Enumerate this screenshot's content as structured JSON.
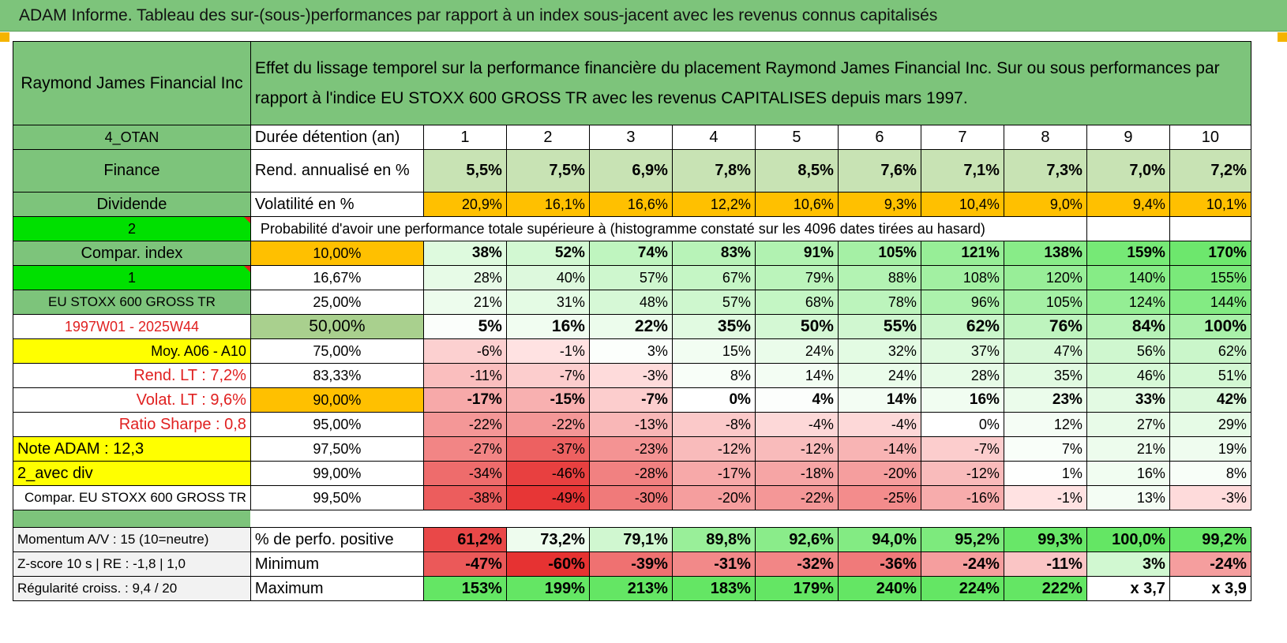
{
  "title": "ADAM Informe. Tableau des sur-(sous-)performances par rapport à un index sous-jacent avec les revenus connus capitalisés",
  "header": {
    "company": "Raymond James Financial Inc",
    "description": "Effet du lissage temporel sur la performance financière du placement Raymond James Financial Inc. Sur ou sous performances par rapport à l'indice EU STOXX 600 GROSS TR avec les revenus CAPITALISES depuis mars 1997."
  },
  "colors": {
    "title_green": "#7dc47b",
    "orange": "#ffc000",
    "yellow": "#ffff00",
    "bright_green": "#00e000",
    "red_text": "#e02020"
  },
  "years": [
    "1",
    "2",
    "3",
    "4",
    "5",
    "6",
    "7",
    "8",
    "9",
    "10"
  ],
  "top_rows": [
    {
      "side": "4_OTAN",
      "label": "Durée détention (an)"
    },
    {
      "side": "Finance",
      "label": "Rend. annualisé en %",
      "values": [
        "5,5%",
        "7,5%",
        "6,9%",
        "7,8%",
        "8,5%",
        "7,6%",
        "7,1%",
        "7,3%",
        "7,0%",
        "7,2%"
      ]
    },
    {
      "side": "Dividende",
      "label": "Volatilité en %",
      "values": [
        "20,9%",
        "16,1%",
        "16,6%",
        "12,2%",
        "10,6%",
        "9,3%",
        "10,4%",
        "9,0%",
        "9,4%",
        "10,1%"
      ]
    }
  ],
  "prob_row": {
    "side": "2",
    "text": "Probabilité d'avoir une performance totale supérieure à (histogramme constaté sur les 4096 dates tirées au hasard)"
  },
  "prob_rows": [
    {
      "side": "Compar. index",
      "pct": "10,00%",
      "values": [
        "38%",
        "52%",
        "74%",
        "83%",
        "91%",
        "105%",
        "121%",
        "138%",
        "159%",
        "170%"
      ]
    },
    {
      "side": "1",
      "pct": "16,67%",
      "values": [
        "28%",
        "40%",
        "57%",
        "67%",
        "79%",
        "88%",
        "108%",
        "120%",
        "140%",
        "155%"
      ]
    },
    {
      "side": "EU STOXX 600 GROSS TR",
      "pct": "25,00%",
      "values": [
        "21%",
        "31%",
        "48%",
        "57%",
        "68%",
        "78%",
        "96%",
        "105%",
        "124%",
        "144%"
      ]
    },
    {
      "side": "1997W01 - 2025W44",
      "pct": "50,00%",
      "values": [
        "5%",
        "16%",
        "22%",
        "35%",
        "50%",
        "55%",
        "62%",
        "76%",
        "84%",
        "100%"
      ]
    },
    {
      "side": "Moy. A06 - A10",
      "pct": "75,00%",
      "values": [
        "-6%",
        "-1%",
        "3%",
        "15%",
        "24%",
        "32%",
        "37%",
        "47%",
        "56%",
        "62%"
      ]
    },
    {
      "side": "Rend. LT :   7,2%",
      "pct": "83,33%",
      "values": [
        "-11%",
        "-7%",
        "-3%",
        "8%",
        "14%",
        "24%",
        "28%",
        "35%",
        "46%",
        "51%"
      ]
    },
    {
      "side": "Volat. LT :   9,6%",
      "pct": "90,00%",
      "values": [
        "-17%",
        "-15%",
        "-7%",
        "0%",
        "4%",
        "14%",
        "16%",
        "23%",
        "33%",
        "42%"
      ]
    },
    {
      "side": "Ratio Sharpe :    0,8",
      "pct": "95,00%",
      "values": [
        "-22%",
        "-22%",
        "-13%",
        "-8%",
        "-4%",
        "-4%",
        "0%",
        "12%",
        "27%",
        "29%"
      ]
    },
    {
      "side": "Note ADAM : 12,3",
      "pct": "97,50%",
      "values": [
        "-27%",
        "-37%",
        "-23%",
        "-12%",
        "-12%",
        "-14%",
        "-7%",
        "7%",
        "21%",
        "19%"
      ]
    },
    {
      "side": "2_avec div",
      "pct": "99,00%",
      "values": [
        "-34%",
        "-46%",
        "-28%",
        "-17%",
        "-18%",
        "-20%",
        "-12%",
        "1%",
        "16%",
        "8%"
      ]
    },
    {
      "side": "Compar. EU STOXX 600 GROSS TR",
      "pct": "99,50%",
      "values": [
        "-38%",
        "-49%",
        "-30%",
        "-20%",
        "-22%",
        "-25%",
        "-16%",
        "-1%",
        "13%",
        "-3%"
      ]
    }
  ],
  "bottom_rows": [
    {
      "side": "Momentum A/V : 15 (10=neutre)",
      "label": "% de perfo. positive",
      "values": [
        "61,2%",
        "73,2%",
        "79,1%",
        "89,8%",
        "92,6%",
        "94,0%",
        "95,2%",
        "99,3%",
        "100,0%",
        "99,2%"
      ]
    },
    {
      "side": "Z-score 10 s | RE : -1,8 | 1,0",
      "label": "Minimum",
      "values": [
        "-47%",
        "-60%",
        "-39%",
        "-31%",
        "-32%",
        "-36%",
        "-24%",
        "-11%",
        "3%",
        "-24%"
      ]
    },
    {
      "side": "Régularité croiss. : 9,4 / 20",
      "label": "Maximum",
      "values": [
        "153%",
        "199%",
        "213%",
        "183%",
        "179%",
        "240%",
        "224%",
        "222%",
        "x 3,7",
        "x 3,9"
      ]
    }
  ]
}
